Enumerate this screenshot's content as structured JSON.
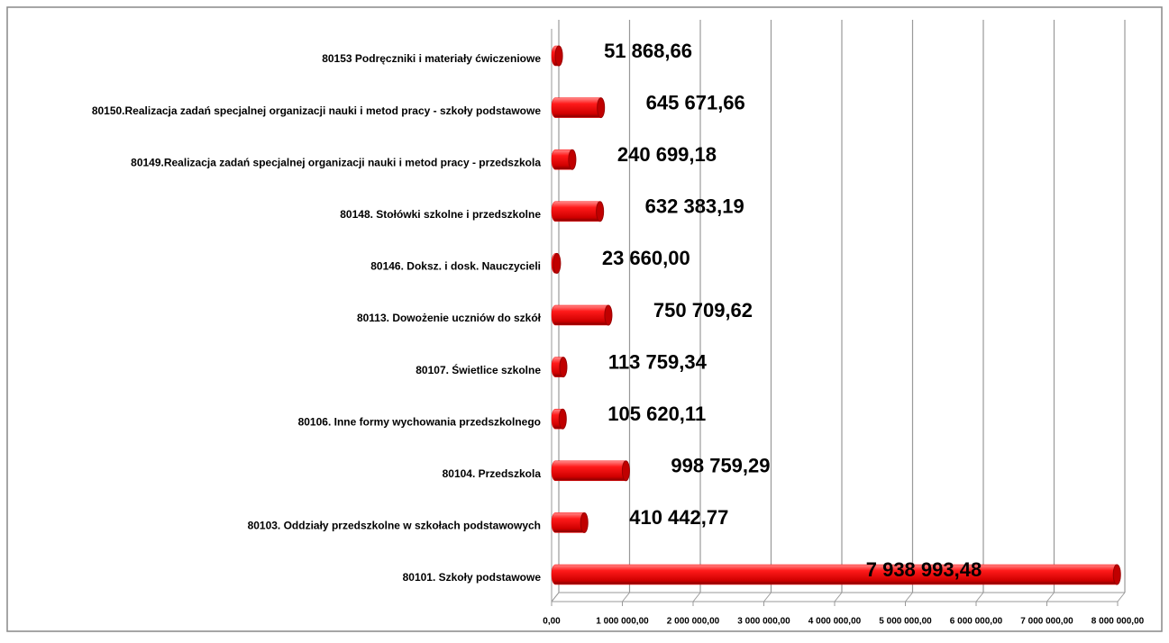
{
  "chart_data": {
    "type": "bar",
    "orientation": "horizontal",
    "categories": [
      "80101. Szkoły podstawowe",
      "80103. Oddziały przedszkolne w szkołach podstawowych",
      "80104. Przedszkola",
      "80106. Inne formy wychowania przedszkolnego",
      "80107. Świetlice szkolne",
      "80113. Dowożenie uczniów do szkół",
      "80146. Doksz. i dosk. Nauczycieli",
      "80148. Stołówki szkolne i przedszkolne",
      "80149.Realizacja zadań specjalnej organizacji nauki i metod pracy - przedszkola",
      "80150.Realizacja zadań specjalnej organizacji nauki i metod pracy - szkoły podstawowe",
      "80153 Podręczniki i materiały ćwiczeniowe"
    ],
    "values": [
      7938993.48,
      410442.77,
      998759.29,
      105620.11,
      113759.34,
      750709.62,
      23660.0,
      632383.19,
      240699.18,
      645671.66,
      51868.66
    ],
    "value_labels": [
      "7 938 993,48",
      "410 442,77",
      "998 759,29",
      "105 620,11",
      "113 759,34",
      "750 709,62",
      "23 660,00",
      "632 383,19",
      "240 699,18",
      "645 671,66",
      "51 868,66"
    ],
    "color": "#ff0000",
    "xlim": [
      0,
      8000000
    ],
    "xticks": [
      {
        "value": 0,
        "label": "0,00"
      },
      {
        "value": 1000000,
        "label": "1 000 000,00"
      },
      {
        "value": 2000000,
        "label": "2 000 000,00"
      },
      {
        "value": 3000000,
        "label": "3 000 000,00"
      },
      {
        "value": 4000000,
        "label": "4 000 000,00"
      },
      {
        "value": 5000000,
        "label": "5 000 000,00"
      },
      {
        "value": 6000000,
        "label": "6 000 000,00"
      },
      {
        "value": 7000000,
        "label": "7 000 000,00"
      },
      {
        "value": 8000000,
        "label": "8 000 000,00"
      }
    ],
    "grid": true
  }
}
